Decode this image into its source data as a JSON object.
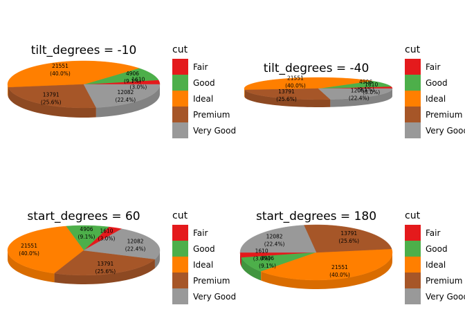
{
  "chart_data": [
    {
      "type": "pie",
      "title": "tilt_degrees = -10",
      "tilt_degrees": -10,
      "start_degrees": 0,
      "categories": [
        "Fair",
        "Good",
        "Ideal",
        "Premium",
        "Very Good"
      ],
      "values": [
        1610,
        4906,
        21551,
        13791,
        12082
      ],
      "labels": [
        "1610\n(3.0%)",
        "4906\n(9.1%)",
        "21551\n(40.0%)",
        "13791\n(25.6%)",
        "12082\n(22.4%)"
      ],
      "legend_title": "cut",
      "legend": [
        "Fair",
        "Good",
        "Ideal",
        "Premium",
        "Very Good"
      ]
    },
    {
      "type": "pie",
      "title": "tilt_degrees = -40",
      "tilt_degrees": -40,
      "start_degrees": 0,
      "categories": [
        "Fair",
        "Good",
        "Ideal",
        "Premium",
        "Very Good"
      ],
      "values": [
        1610,
        4906,
        21551,
        13791,
        12082
      ],
      "labels": [
        "1610\n(3.0%)",
        "4906\n(9.1%)",
        "21551\n(40.0%)",
        "13791\n(25.6%)",
        "12082\n(22.4%)"
      ],
      "legend_title": "cut",
      "legend": [
        "Fair",
        "Good",
        "Ideal",
        "Premium",
        "Very Good"
      ]
    },
    {
      "type": "pie",
      "title": "start_degrees = 60",
      "tilt_degrees": -20,
      "start_degrees": 60,
      "categories": [
        "Fair",
        "Good",
        "Ideal",
        "Premium",
        "Very Good"
      ],
      "values": [
        1610,
        4906,
        21551,
        13791,
        12082
      ],
      "labels": [
        "1610\n(3.0%)",
        "4906\n(9.1%)",
        "21551\n(40.0%)",
        "13791\n(25.6%)",
        "12082\n(22.4%)"
      ],
      "legend_title": "cut",
      "legend": [
        "Fair",
        "Good",
        "Ideal",
        "Premium",
        "Very Good"
      ]
    },
    {
      "type": "pie",
      "title": "start_degrees = 180",
      "tilt_degrees": -20,
      "start_degrees": 180,
      "categories": [
        "Fair",
        "Good",
        "Ideal",
        "Premium",
        "Very Good"
      ],
      "values": [
        1610,
        4906,
        21551,
        13791,
        12082
      ],
      "labels": [
        "1610\n(3.0%)",
        "4906\n(9.1%)",
        "21551\n(40.0%)",
        "13791\n(25.6%)",
        "12082\n(22.4%)"
      ],
      "legend_title": "cut",
      "legend": [
        "Fair",
        "Good",
        "Ideal",
        "Premium",
        "Very Good"
      ]
    }
  ],
  "colors": {
    "Fair": "#E41A1C",
    "Good": "#4DAF4A",
    "Ideal": "#FF7F00",
    "Premium": "#A65628",
    "Very Good": "#999999"
  }
}
